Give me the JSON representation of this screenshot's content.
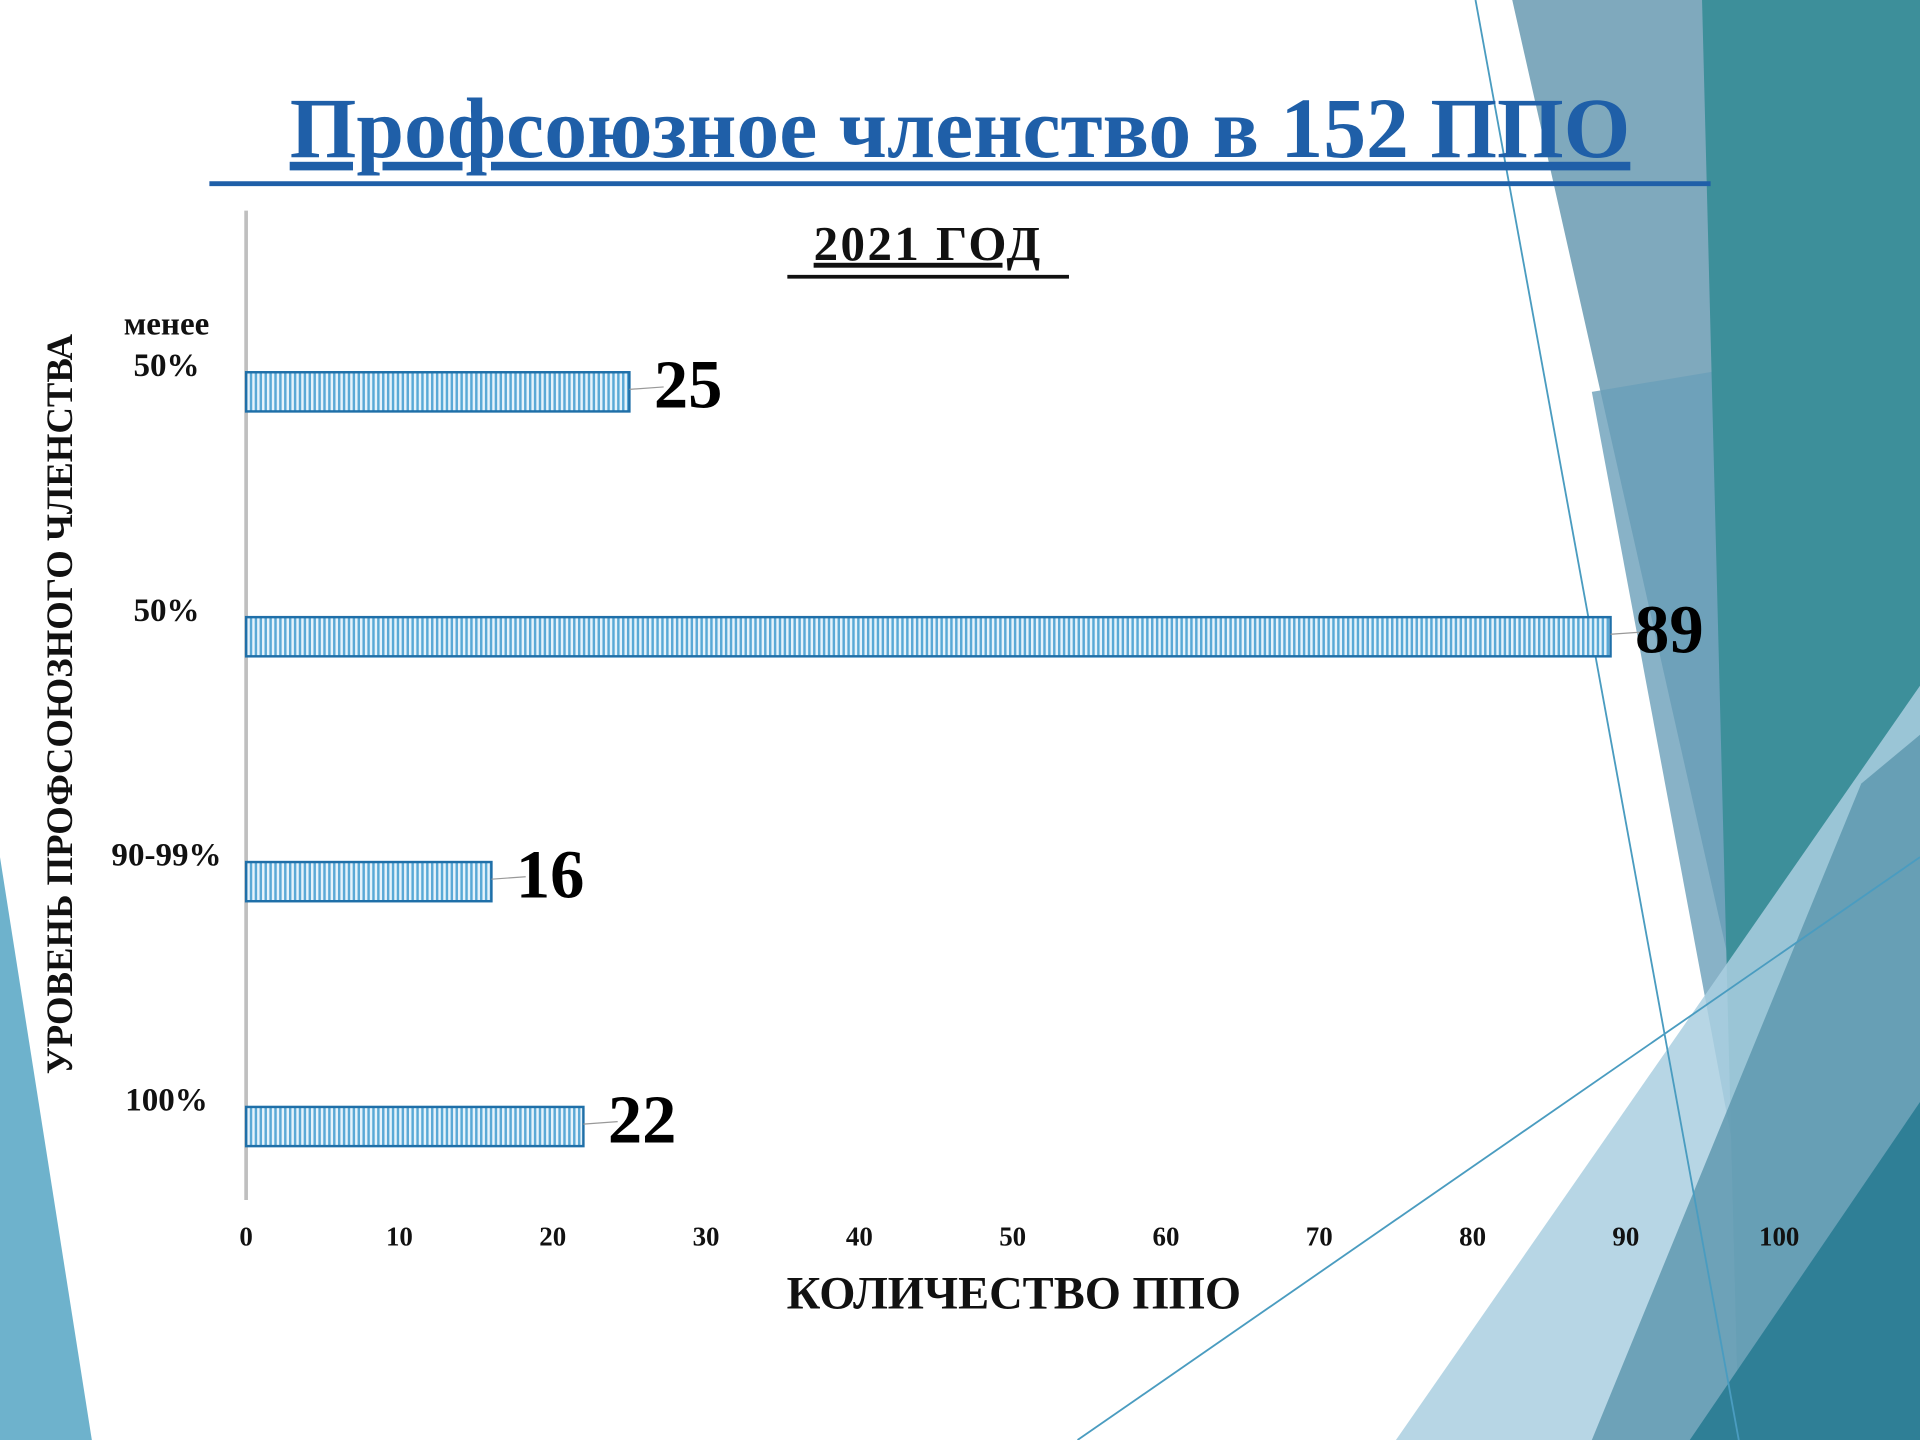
{
  "chart_data": {
    "type": "bar",
    "orientation": "horizontal",
    "title": "Профсоюзное членство в 152 ППО",
    "subtitle": "2021 ГОД",
    "x_label": "КОЛИЧЕСТВО ППО",
    "y_label": "УРОВЕНЬ ПРОФСОЮЗНОГО ЧЛЕНСТВА",
    "categories": [
      "менее 50%",
      "50%",
      "90-99%",
      "100%"
    ],
    "values": [
      25,
      89,
      16,
      22
    ],
    "color": "#1f6fa8",
    "xlim": [
      0,
      100
    ],
    "xticks": [
      0,
      10,
      20,
      30,
      40,
      50,
      60,
      70,
      80,
      90,
      100
    ],
    "grid": false
  }
}
